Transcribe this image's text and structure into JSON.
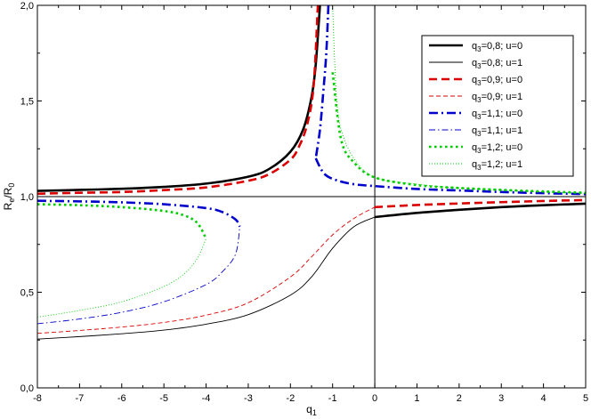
{
  "chart_data": {
    "type": "line",
    "title": "",
    "xlabel": {
      "base": "q",
      "sub": "1"
    },
    "ylabel": {
      "part1": "R",
      "sub1": "e",
      "part2": "/R",
      "sub2": "0"
    },
    "xlim": [
      -8,
      5
    ],
    "ylim": [
      0,
      2
    ],
    "x_ticks": [
      -8,
      -7,
      -6,
      -5,
      -4,
      -3,
      -2,
      -1,
      0,
      1,
      2,
      3,
      4,
      5
    ],
    "x_tick_labels": [
      "-8",
      "-7",
      "-6",
      "-5",
      "-4",
      "-3",
      "-2",
      "-1",
      "0",
      "1",
      "2",
      "3",
      "4",
      "5"
    ],
    "y_ticks": [
      0,
      0.5,
      1.0,
      1.5,
      2.0
    ],
    "y_tick_labels": [
      "0,0",
      "0,5",
      "1,0",
      "1,5",
      "2,0"
    ],
    "reference_lines": {
      "horizontal_y": 1.0,
      "vertical_x": 0
    },
    "grid": false,
    "legend_position": "top-right",
    "series": [
      {
        "name": "q3=0,8; u=0",
        "label": {
          "pre": "q",
          "sub": "3",
          "post": "=0,8; u=0"
        },
        "color": "#000000",
        "style": "solid",
        "width": "thick",
        "segments": [
          [
            [
              -8,
              1.03
            ],
            [
              -7,
              1.035
            ],
            [
              -6,
              1.041
            ],
            [
              -5,
              1.051
            ],
            [
              -4,
              1.068
            ],
            [
              -3,
              1.104
            ],
            [
              -2.5,
              1.145
            ],
            [
              -2,
              1.235
            ],
            [
              -1.7,
              1.35
            ],
            [
              -1.5,
              1.52
            ],
            [
              -1.4,
              1.69
            ],
            [
              -1.3,
              2.0
            ]
          ],
          [
            [
              0,
              0.893
            ],
            [
              1,
              0.915
            ],
            [
              2,
              0.931
            ],
            [
              3,
              0.945
            ],
            [
              4,
              0.955
            ],
            [
              5,
              0.963
            ]
          ]
        ]
      },
      {
        "name": "q3=0,8; u=1",
        "label": {
          "pre": "q",
          "sub": "3",
          "post": "=0,8; u=1"
        },
        "color": "#000000",
        "style": "solid",
        "width": "thin",
        "segments": [
          [
            [
              -8,
              0.255
            ],
            [
              -7,
              0.268
            ],
            [
              -6,
              0.283
            ],
            [
              -5,
              0.302
            ],
            [
              -4,
              0.333
            ],
            [
              -3,
              0.383
            ],
            [
              -2,
              0.485
            ],
            [
              -1.5,
              0.58
            ],
            [
              -1,
              0.73
            ],
            [
              -0.5,
              0.842
            ],
            [
              0,
              0.893
            ]
          ]
        ]
      },
      {
        "name": "q3=0,9; u=0",
        "label": {
          "pre": "q",
          "sub": "3",
          "post": "=0,9; u=0"
        },
        "color": "#dd0000",
        "style": "dashed",
        "width": "thick",
        "segments": [
          [
            [
              -8,
              1.015
            ],
            [
              -7,
              1.02
            ],
            [
              -6,
              1.024
            ],
            [
              -5,
              1.034
            ],
            [
              -4,
              1.048
            ],
            [
              -3,
              1.083
            ],
            [
              -2.5,
              1.118
            ],
            [
              -2,
              1.193
            ],
            [
              -1.8,
              1.26
            ],
            [
              -1.6,
              1.38
            ],
            [
              -1.45,
              1.58
            ],
            [
              -1.35,
              2.0
            ]
          ],
          [
            [
              0,
              0.945
            ],
            [
              1,
              0.956
            ],
            [
              2,
              0.964
            ],
            [
              3,
              0.971
            ],
            [
              4,
              0.977
            ],
            [
              5,
              0.982
            ]
          ]
        ]
      },
      {
        "name": "q3=0,9; u=1",
        "label": {
          "pre": "q",
          "sub": "3",
          "post": "=0,9; u=1"
        },
        "color": "#dd0000",
        "style": "dashed",
        "width": "thin",
        "segments": [
          [
            [
              -8,
              0.285
            ],
            [
              -7,
              0.3
            ],
            [
              -6,
              0.318
            ],
            [
              -5,
              0.342
            ],
            [
              -4,
              0.38
            ],
            [
              -3,
              0.445
            ],
            [
              -2,
              0.58
            ],
            [
              -1.5,
              0.685
            ],
            [
              -1,
              0.8
            ],
            [
              -0.5,
              0.885
            ],
            [
              0,
              0.945
            ]
          ]
        ]
      },
      {
        "name": "q3=1,1; u=0",
        "label": {
          "pre": "q",
          "sub": "3",
          "post": "=1,1; u=0"
        },
        "color": "#0000cc",
        "style": "dashdot",
        "width": "thick",
        "segments": [
          [
            [
              -8,
              0.978
            ],
            [
              -7,
              0.975
            ],
            [
              -6,
              0.97
            ],
            [
              -5,
              0.96
            ],
            [
              -4,
              0.94
            ],
            [
              -3.6,
              0.918
            ],
            [
              -3.3,
              0.88
            ],
            [
              -3.2,
              0.843
            ]
          ],
          [
            [
              -1.1,
              2.0
            ],
            [
              -1.15,
              1.75
            ],
            [
              -1.22,
              1.55
            ],
            [
              -1.3,
              1.35
            ],
            [
              -1.4,
              1.2
            ]
          ],
          [
            [
              -1.4,
              1.2
            ],
            [
              -1.2,
              1.12
            ],
            [
              -0.9,
              1.085
            ],
            [
              -0.5,
              1.065
            ],
            [
              0,
              1.055
            ],
            [
              1,
              1.04
            ],
            [
              2,
              1.032
            ],
            [
              3,
              1.024
            ],
            [
              4,
              1.018
            ],
            [
              5,
              1.013
            ]
          ]
        ]
      },
      {
        "name": "q3=1,1; u=1",
        "label": {
          "pre": "q",
          "sub": "3",
          "post": "=1,1; u=1"
        },
        "color": "#0000cc",
        "style": "dashdot",
        "width": "thin",
        "segments": [
          [
            [
              -8,
              0.335
            ],
            [
              -7,
              0.36
            ],
            [
              -6,
              0.395
            ],
            [
              -5,
              0.45
            ],
            [
              -4,
              0.54
            ],
            [
              -3.6,
              0.61
            ],
            [
              -3.3,
              0.7
            ],
            [
              -3.2,
              0.843
            ]
          ]
        ]
      },
      {
        "name": "q3=1,2; u=0",
        "label": {
          "pre": "q",
          "sub": "3",
          "post": "=1,2; u=0"
        },
        "color": "#00cc00",
        "style": "dotted",
        "width": "thick",
        "segments": [
          [
            [
              -8,
              0.96
            ],
            [
              -7,
              0.955
            ],
            [
              -6,
              0.945
            ],
            [
              -5,
              0.925
            ],
            [
              -4.5,
              0.9
            ],
            [
              -4.2,
              0.86
            ],
            [
              -4,
              0.78
            ]
          ],
          [
            [
              -1.0,
              1.65
            ],
            [
              -0.8,
              1.3
            ],
            [
              -0.5,
              1.18
            ],
            [
              0,
              1.1
            ],
            [
              1,
              1.06
            ],
            [
              2,
              1.045
            ],
            [
              3,
              1.035
            ],
            [
              4,
              1.027
            ],
            [
              5,
              1.02
            ]
          ]
        ]
      },
      {
        "name": "q3=1,2; u=1",
        "label": {
          "pre": "q",
          "sub": "3",
          "post": "=1,2; u=1"
        },
        "color": "#00cc00",
        "style": "dotted",
        "width": "thin",
        "segments": [
          [
            [
              -8,
              0.37
            ],
            [
              -7,
              0.405
            ],
            [
              -6,
              0.45
            ],
            [
              -5,
              0.53
            ],
            [
              -4.5,
              0.6
            ],
            [
              -4.2,
              0.68
            ],
            [
              -4,
              0.78
            ]
          ],
          [
            [
              -1.0,
              2.0
            ],
            [
              -0.95,
              1.7
            ],
            [
              -0.9,
              1.5
            ],
            [
              -0.8,
              1.35
            ],
            [
              -0.5,
              1.2
            ],
            [
              0,
              1.1
            ],
            [
              1,
              1.065
            ],
            [
              2,
              1.045
            ],
            [
              3,
              1.035
            ],
            [
              4,
              1.025
            ],
            [
              5,
              1.018
            ]
          ]
        ]
      }
    ]
  }
}
